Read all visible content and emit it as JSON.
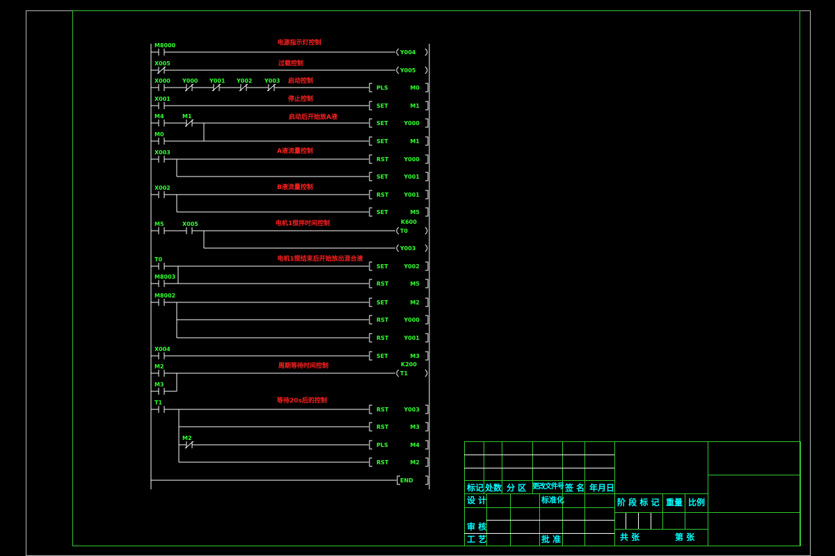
{
  "colors": {
    "background": "#000000",
    "frame": "#33cc33",
    "wire": "#ffffff",
    "operand": "#33ff33",
    "comment": "#ff2020",
    "title_text": "#00ffff"
  },
  "rungs": [
    {
      "comment": "电源指示灯控制",
      "lines": [
        {
          "contacts": [
            {
              "label": "M8000",
              "type": "NO"
            }
          ],
          "out": {
            "type": "coil",
            "op": "Y004"
          }
        }
      ]
    },
    {
      "comment": "过载控制",
      "lines": [
        {
          "contacts": [
            {
              "label": "X005",
              "type": "NC"
            }
          ],
          "out": {
            "type": "coil",
            "op": "Y005"
          }
        }
      ]
    },
    {
      "comment": "启动控制",
      "lines": [
        {
          "contacts": [
            {
              "label": "X000",
              "type": "NO"
            },
            {
              "label": "Y000",
              "type": "NC"
            },
            {
              "label": "Y001",
              "type": "NC"
            },
            {
              "label": "Y002",
              "type": "NC"
            },
            {
              "label": "Y003",
              "type": "NC"
            }
          ],
          "out": {
            "type": "box",
            "instr": "PLS",
            "op": "M0"
          }
        }
      ]
    },
    {
      "comment": "停止控制",
      "lines": [
        {
          "contacts": [
            {
              "label": "X001",
              "type": "NO"
            }
          ],
          "out": {
            "type": "box",
            "instr": "SET",
            "op": "M1"
          }
        }
      ]
    },
    {
      "comment": "启动后开始放A液",
      "lines": [
        {
          "contacts": [
            {
              "label": "M4",
              "type": "NO"
            },
            {
              "label": "M1",
              "type": "NC"
            }
          ],
          "out": {
            "type": "box",
            "instr": "SET",
            "op": "Y000"
          }
        },
        {
          "contacts": [
            {
              "label": "M0",
              "type": "NO"
            }
          ],
          "out": {
            "type": "box",
            "instr": "SET",
            "op": "M1"
          }
        }
      ]
    },
    {
      "comment": "A液流量控制",
      "lines": [
        {
          "contacts": [
            {
              "label": "X003",
              "type": "NO"
            }
          ],
          "out": {
            "type": "box",
            "instr": "RST",
            "op": "Y000"
          }
        },
        {
          "contacts": [],
          "out": {
            "type": "box",
            "instr": "SET",
            "op": "Y001"
          }
        }
      ]
    },
    {
      "comment": "B液流量控制",
      "lines": [
        {
          "contacts": [
            {
              "label": "X002",
              "type": "NO"
            }
          ],
          "out": {
            "type": "box",
            "instr": "RST",
            "op": "Y001"
          }
        },
        {
          "contacts": [],
          "out": {
            "type": "box",
            "instr": "SET",
            "op": "M5"
          }
        }
      ]
    },
    {
      "comment": "电机1搅拌时间控制",
      "lines": [
        {
          "contacts": [
            {
              "label": "M5",
              "type": "NO"
            },
            {
              "label": "X005",
              "type": "NO"
            }
          ],
          "out": {
            "type": "coil",
            "op": "T0",
            "preset": "K600"
          }
        },
        {
          "contacts": [],
          "out": {
            "type": "coil",
            "op": "Y003"
          }
        }
      ]
    },
    {
      "comment": "电机1搅结束后开始放出混合液",
      "lines": [
        {
          "contacts": [
            {
              "label": "T0",
              "type": "NO"
            }
          ],
          "out": {
            "type": "box",
            "instr": "SET",
            "op": "Y002"
          }
        },
        {
          "contacts": [
            {
              "label": "M8003",
              "type": "NO"
            }
          ],
          "out": {
            "type": "box",
            "instr": "RST",
            "op": "M5"
          }
        }
      ]
    },
    {
      "comment": "",
      "lines": [
        {
          "contacts": [
            {
              "label": "M8002",
              "type": "NO"
            }
          ],
          "out": {
            "type": "box",
            "instr": "SET",
            "op": "M2"
          }
        },
        {
          "contacts": [],
          "out": {
            "type": "box",
            "instr": "RST",
            "op": "Y000"
          }
        },
        {
          "contacts": [],
          "out": {
            "type": "box",
            "instr": "RST",
            "op": "Y001"
          }
        }
      ]
    },
    {
      "comment": "",
      "lines": [
        {
          "contacts": [
            {
              "label": "X004",
              "type": "NO"
            }
          ],
          "out": {
            "type": "box",
            "instr": "SET",
            "op": "M3"
          }
        }
      ]
    },
    {
      "comment": "周期等待时间控制",
      "lines": [
        {
          "contacts": [
            {
              "label": "M2",
              "type": "NO"
            }
          ],
          "out": {
            "type": "coil",
            "op": "T1",
            "preset": "K200"
          }
        },
        {
          "contacts": [
            {
              "label": "M3",
              "type": "NO"
            }
          ],
          "out": null
        }
      ]
    },
    {
      "comment": "等待20s后的控制",
      "lines": [
        {
          "contacts": [
            {
              "label": "T1",
              "type": "NO"
            }
          ],
          "out": {
            "type": "box",
            "instr": "RST",
            "op": "Y003"
          }
        },
        {
          "contacts": [],
          "out": {
            "type": "box",
            "instr": "RST",
            "op": "M3"
          }
        },
        {
          "contacts": [
            {
              "label": "M2",
              "type": "NC"
            }
          ],
          "out": {
            "type": "box",
            "instr": "PLS",
            "op": "M4"
          }
        },
        {
          "contacts": [],
          "out": {
            "type": "box",
            "instr": "RST",
            "op": "M2"
          }
        }
      ]
    },
    {
      "comment": "",
      "lines": [
        {
          "contacts": [],
          "out": {
            "type": "end",
            "op": "END"
          }
        }
      ]
    }
  ],
  "title_block": {
    "mark": "标记",
    "count": "处数",
    "zone": "分 区",
    "change_doc": "更改文件号",
    "signature": "签 名",
    "date": "年月日",
    "design": "设 计",
    "standardize": "标准化",
    "review": "审 核",
    "process": "工 艺",
    "approve": "批 准",
    "stage_mark": "阶 段 标 记",
    "weight": "重量",
    "scale": "比例",
    "total_sheets": "共   张",
    "sheet_no": "第   张"
  }
}
